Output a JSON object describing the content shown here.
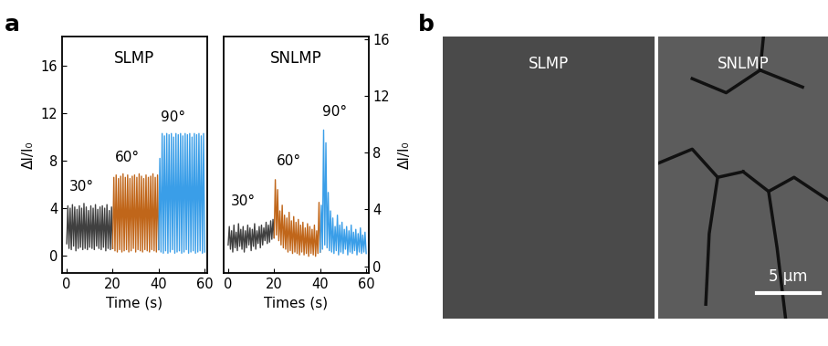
{
  "chart_data": [
    {
      "type": "line",
      "title": "SLMP",
      "x_label": "Time (s)",
      "y_label": "ΔI/I₀",
      "xlim": [
        -2,
        61
      ],
      "xticks": [
        0,
        20,
        40,
        60
      ],
      "ylim": [
        -1.5,
        18.5
      ],
      "yticks": [
        0,
        4,
        8,
        12,
        16
      ],
      "series": [
        {
          "name": "30°",
          "color": "#404040",
          "x": [
            0,
            0.5,
            1,
            1.5,
            2,
            2.5,
            3,
            3.5,
            4,
            4.5,
            5,
            5.5,
            6,
            6.5,
            7,
            7.5,
            8,
            8.5,
            9,
            9.5,
            10,
            10.5,
            11,
            11.5,
            12,
            12.5,
            13,
            13.5,
            14,
            14.5,
            15,
            15.5,
            16,
            16.5,
            17,
            17.5,
            18,
            18.5,
            19,
            19.5,
            20
          ],
          "values": [
            1.0,
            4.2,
            0.6,
            4.0,
            0.5,
            4.3,
            0.8,
            4.1,
            0.4,
            3.9,
            0.6,
            4.2,
            0.7,
            4.0,
            0.5,
            4.4,
            0.6,
            4.1,
            0.5,
            3.8,
            0.7,
            4.2,
            0.6,
            4.0,
            0.5,
            4.3,
            0.8,
            3.9,
            0.6,
            4.1,
            0.5,
            4.2,
            0.7,
            4.0,
            0.4,
            4.3,
            0.6,
            3.8,
            0.5,
            4.1,
            0.6
          ]
        },
        {
          "name": "60°",
          "color": "#c0661a",
          "x": [
            20,
            20.5,
            21,
            21.5,
            22,
            22.5,
            23,
            23.5,
            24,
            24.5,
            25,
            25.5,
            26,
            26.5,
            27,
            27.5,
            28,
            28.5,
            29,
            29.5,
            30,
            30.5,
            31,
            31.5,
            32,
            32.5,
            33,
            33.5,
            34,
            34.5,
            35,
            35.5,
            36,
            36.5,
            37,
            37.5,
            38,
            38.5,
            39,
            39.5,
            40
          ],
          "values": [
            0.6,
            6.6,
            0.4,
            6.8,
            0.3,
            6.5,
            0.5,
            6.7,
            0.3,
            6.9,
            0.4,
            6.6,
            0.5,
            6.8,
            0.3,
            6.5,
            0.4,
            6.7,
            0.6,
            6.8,
            0.3,
            6.6,
            0.5,
            6.9,
            0.4,
            6.7,
            0.3,
            6.5,
            0.5,
            6.8,
            0.4,
            6.6,
            0.3,
            6.7,
            0.5,
            6.9,
            0.4,
            6.6,
            0.3,
            6.8,
            0.5
          ]
        },
        {
          "name": "90°",
          "color": "#3a9ee8",
          "x": [
            40,
            40.5,
            41,
            41.5,
            42,
            42.5,
            43,
            43.5,
            44,
            44.5,
            45,
            45.5,
            46,
            46.5,
            47,
            47.5,
            48,
            48.5,
            49,
            49.5,
            50,
            50.5,
            51,
            51.5,
            52,
            52.5,
            53,
            53.5,
            54,
            54.5,
            55,
            55.5,
            56,
            56.5,
            57,
            57.5,
            58,
            58.5,
            59,
            59.5,
            60
          ],
          "values": [
            0.5,
            8.2,
            0.3,
            10.3,
            0.2,
            10.1,
            0.4,
            10.3,
            0.2,
            10.2,
            0.3,
            10.3,
            0.5,
            10.0,
            0.2,
            10.3,
            0.3,
            10.2,
            0.4,
            10.3,
            0.2,
            10.1,
            0.3,
            10.3,
            0.5,
            10.2,
            0.2,
            10.3,
            0.3,
            10.0,
            0.4,
            10.3,
            0.2,
            10.2,
            0.3,
            10.3,
            0.4,
            10.1,
            0.2,
            10.3,
            0.3
          ]
        }
      ]
    },
    {
      "type": "line",
      "title": "SNLMP",
      "x_label": "Times (s)",
      "y_label": "ΔI/I₀",
      "xlim": [
        -2,
        61
      ],
      "xticks": [
        0,
        20,
        40,
        60
      ],
      "ylim": [
        -0.5,
        16.2
      ],
      "yticks": [
        0,
        4,
        8,
        12,
        16
      ],
      "series": [
        {
          "name": "30°",
          "color": "#404040",
          "x": [
            0,
            0.5,
            1,
            1.5,
            2,
            2.5,
            3,
            3.5,
            4,
            4.5,
            5,
            5.5,
            6,
            6.5,
            7,
            7.5,
            8,
            8.5,
            9,
            9.5,
            10,
            10.5,
            11,
            11.5,
            12,
            12.5,
            13,
            13.5,
            14,
            14.5,
            15,
            15.5,
            16,
            16.5,
            17,
            17.5,
            18,
            18.5,
            19,
            19.5,
            20
          ],
          "values": [
            1.5,
            2.8,
            1.2,
            2.5,
            1.0,
            2.9,
            1.3,
            2.4,
            1.1,
            3.0,
            1.4,
            2.6,
            1.2,
            2.8,
            1.0,
            2.5,
            1.3,
            2.9,
            1.5,
            2.7,
            1.1,
            2.6,
            1.4,
            3.0,
            1.2,
            2.5,
            1.6,
            2.8,
            1.3,
            2.9,
            1.5,
            2.7,
            1.8,
            3.1,
            1.6,
            2.9,
            1.7,
            3.2,
            1.9,
            3.3,
            2.0
          ]
        },
        {
          "name": "60°",
          "color": "#c0661a",
          "x": [
            20,
            20.5,
            21,
            21.5,
            22,
            22.5,
            23,
            23.5,
            24,
            24.5,
            25,
            25.5,
            26,
            26.5,
            27,
            27.5,
            28,
            28.5,
            29,
            29.5,
            30,
            30.5,
            31,
            31.5,
            32,
            32.5,
            33,
            33.5,
            34,
            34.5,
            35,
            35.5,
            36,
            36.5,
            37,
            37.5,
            38,
            38.5,
            39,
            39.5,
            40
          ],
          "values": [
            2.0,
            6.1,
            2.2,
            5.4,
            1.8,
            3.9,
            1.5,
            4.3,
            1.3,
            3.6,
            1.2,
            3.4,
            1.0,
            3.8,
            1.1,
            3.2,
            0.9,
            3.5,
            1.0,
            3.1,
            0.9,
            3.3,
            0.8,
            2.9,
            1.0,
            3.1,
            0.8,
            2.7,
            0.9,
            3.0,
            0.7,
            2.8,
            0.9,
            2.6,
            0.8,
            2.9,
            0.7,
            2.5,
            0.9,
            4.5,
            1.0
          ]
        },
        {
          "name": "90°",
          "color": "#3a9ee8",
          "x": [
            40,
            40.5,
            41,
            41.5,
            42,
            42.5,
            43,
            43.5,
            44,
            44.5,
            45,
            45.5,
            46,
            46.5,
            47,
            47.5,
            48,
            48.5,
            49,
            49.5,
            50,
            50.5,
            51,
            51.5,
            52,
            52.5,
            53,
            53.5,
            54,
            54.5,
            55,
            55.5,
            56,
            56.5,
            57,
            57.5,
            58,
            58.5,
            59,
            59.5,
            60
          ],
          "values": [
            1.0,
            4.3,
            1.2,
            9.6,
            1.5,
            8.7,
            1.3,
            5.2,
            1.1,
            3.9,
            1.0,
            3.4,
            0.9,
            2.8,
            1.1,
            3.6,
            0.8,
            2.9,
            1.0,
            3.1,
            0.9,
            2.6,
            1.2,
            2.8,
            0.8,
            2.5,
            1.0,
            2.9,
            0.9,
            2.4,
            1.1,
            2.6,
            0.8,
            2.3,
            1.0,
            2.7,
            0.9,
            2.2,
            1.0,
            2.4,
            0.9
          ]
        }
      ]
    }
  ],
  "panel_labels": [
    "a",
    "b"
  ],
  "images": [
    {
      "label": "SLMP"
    },
    {
      "label": "SNLMP",
      "scale_bar": "5 µm"
    }
  ]
}
